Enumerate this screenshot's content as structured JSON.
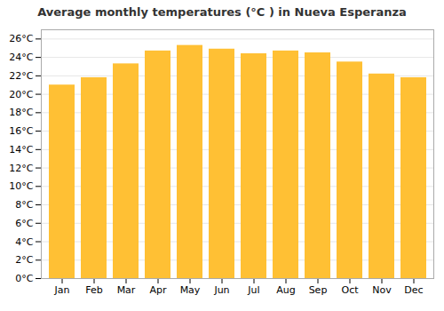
{
  "chart_data": {
    "type": "bar",
    "title": "Average monthly temperatures (°C ) in Nueva Esperanza",
    "categories": [
      "Jan",
      "Feb",
      "Mar",
      "Apr",
      "May",
      "Jun",
      "Jul",
      "Aug",
      "Sep",
      "Oct",
      "Nov",
      "Dec"
    ],
    "values": [
      21.0,
      21.8,
      23.3,
      24.7,
      25.3,
      24.9,
      24.4,
      24.7,
      24.5,
      23.5,
      22.2,
      21.8
    ],
    "color": "#FFC034",
    "ylim": [
      0,
      27
    ],
    "yticks": [
      {
        "value": 0,
        "label": "0°C"
      },
      {
        "value": 2,
        "label": "2°C"
      },
      {
        "value": 4,
        "label": "4°C"
      },
      {
        "value": 6,
        "label": "6°C"
      },
      {
        "value": 8,
        "label": "8°C"
      },
      {
        "value": 10,
        "label": "10°C"
      },
      {
        "value": 12,
        "label": "12°C"
      },
      {
        "value": 14,
        "label": "14°C"
      },
      {
        "value": 16,
        "label": "16°C"
      },
      {
        "value": 18,
        "label": "18°C"
      },
      {
        "value": 20,
        "label": "20°C"
      },
      {
        "value": 22,
        "label": "22°C"
      },
      {
        "value": 24,
        "label": "24°C"
      },
      {
        "value": 26,
        "label": "26°C"
      }
    ],
    "grid": true
  }
}
